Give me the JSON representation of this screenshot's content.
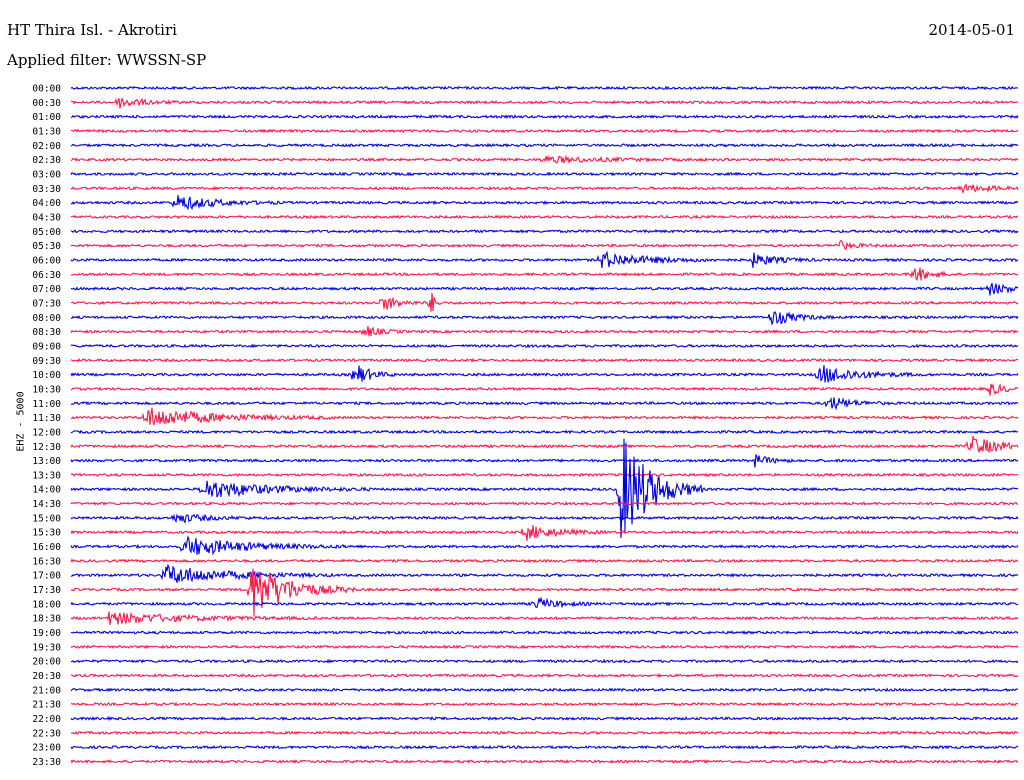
{
  "header": {
    "station": "HT Thira Isl. - Akrotiri",
    "date": "2014-05-01",
    "filter": "Applied filter: WWSSN-SP"
  },
  "chart_data": {
    "type": "line",
    "title": "HT Thira Isl. - Akrotiri",
    "ylabel": "EHZ - 5000",
    "colors": [
      "#0000dd",
      "#ff1a4a"
    ],
    "rows": [
      "00:00",
      "00:30",
      "01:00",
      "01:30",
      "02:00",
      "02:30",
      "03:00",
      "03:30",
      "04:00",
      "04:30",
      "05:00",
      "05:30",
      "06:00",
      "06:30",
      "07:00",
      "07:30",
      "08:00",
      "08:30",
      "09:00",
      "09:30",
      "10:00",
      "10:30",
      "11:00",
      "11:30",
      "12:00",
      "12:30",
      "13:00",
      "13:30",
      "14:00",
      "14:30",
      "15:00",
      "15:30",
      "16:00",
      "16:30",
      "17:00",
      "17:30",
      "18:00",
      "18:30",
      "19:00",
      "19:30",
      "20:00",
      "20:30",
      "21:00",
      "21:30",
      "22:00",
      "22:30",
      "23:00",
      "23:30"
    ],
    "events": [
      {
        "row": "00:30",
        "t": 0.05,
        "amp": 6,
        "dur": 0.03
      },
      {
        "row": "02:30",
        "t": 0.5,
        "amp": 3,
        "dur": 0.08
      },
      {
        "row": "03:30",
        "t": 0.94,
        "amp": 4,
        "dur": 0.04
      },
      {
        "row": "04:00",
        "t": 0.11,
        "amp": 8,
        "dur": 0.05
      },
      {
        "row": "05:30",
        "t": 0.81,
        "amp": 5,
        "dur": 0.02
      },
      {
        "row": "06:00",
        "t": 0.56,
        "amp": 8,
        "dur": 0.06
      },
      {
        "row": "06:00",
        "t": 0.72,
        "amp": 7,
        "dur": 0.03
      },
      {
        "row": "06:30",
        "t": 0.89,
        "amp": 9,
        "dur": 0.02
      },
      {
        "row": "07:00",
        "t": 0.97,
        "amp": 6,
        "dur": 0.03
      },
      {
        "row": "07:30",
        "t": 0.33,
        "amp": 8,
        "dur": 0.02
      },
      {
        "row": "07:30",
        "t": 0.38,
        "amp": 14,
        "dur": 0.005
      },
      {
        "row": "08:00",
        "t": 0.74,
        "amp": 8,
        "dur": 0.03
      },
      {
        "row": "08:30",
        "t": 0.31,
        "amp": 6,
        "dur": 0.02
      },
      {
        "row": "10:00",
        "t": 0.3,
        "amp": 12,
        "dur": 0.02
      },
      {
        "row": "10:00",
        "t": 0.79,
        "amp": 10,
        "dur": 0.05
      },
      {
        "row": "10:30",
        "t": 0.97,
        "amp": 6,
        "dur": 0.02
      },
      {
        "row": "11:00",
        "t": 0.8,
        "amp": 7,
        "dur": 0.03
      },
      {
        "row": "11:30",
        "t": 0.08,
        "amp": 10,
        "dur": 0.09
      },
      {
        "row": "12:30",
        "t": 0.95,
        "amp": 10,
        "dur": 0.04
      },
      {
        "row": "13:00",
        "t": 0.72,
        "amp": 7,
        "dur": 0.02
      },
      {
        "row": "14:00",
        "t": 0.58,
        "amp": 60,
        "dur": 0.04
      },
      {
        "row": "14:00",
        "t": 0.14,
        "amp": 10,
        "dur": 0.08
      },
      {
        "row": "15:00",
        "t": 0.11,
        "amp": 5,
        "dur": 0.04
      },
      {
        "row": "15:30",
        "t": 0.48,
        "amp": 8,
        "dur": 0.04
      },
      {
        "row": "16:00",
        "t": 0.12,
        "amp": 10,
        "dur": 0.08
      },
      {
        "row": "17:00",
        "t": 0.1,
        "amp": 10,
        "dur": 0.08
      },
      {
        "row": "17:30",
        "t": 0.19,
        "amp": 30,
        "dur": 0.05
      },
      {
        "row": "18:00",
        "t": 0.49,
        "amp": 6,
        "dur": 0.03
      },
      {
        "row": "18:30",
        "t": 0.04,
        "amp": 6,
        "dur": 0.1
      }
    ]
  }
}
